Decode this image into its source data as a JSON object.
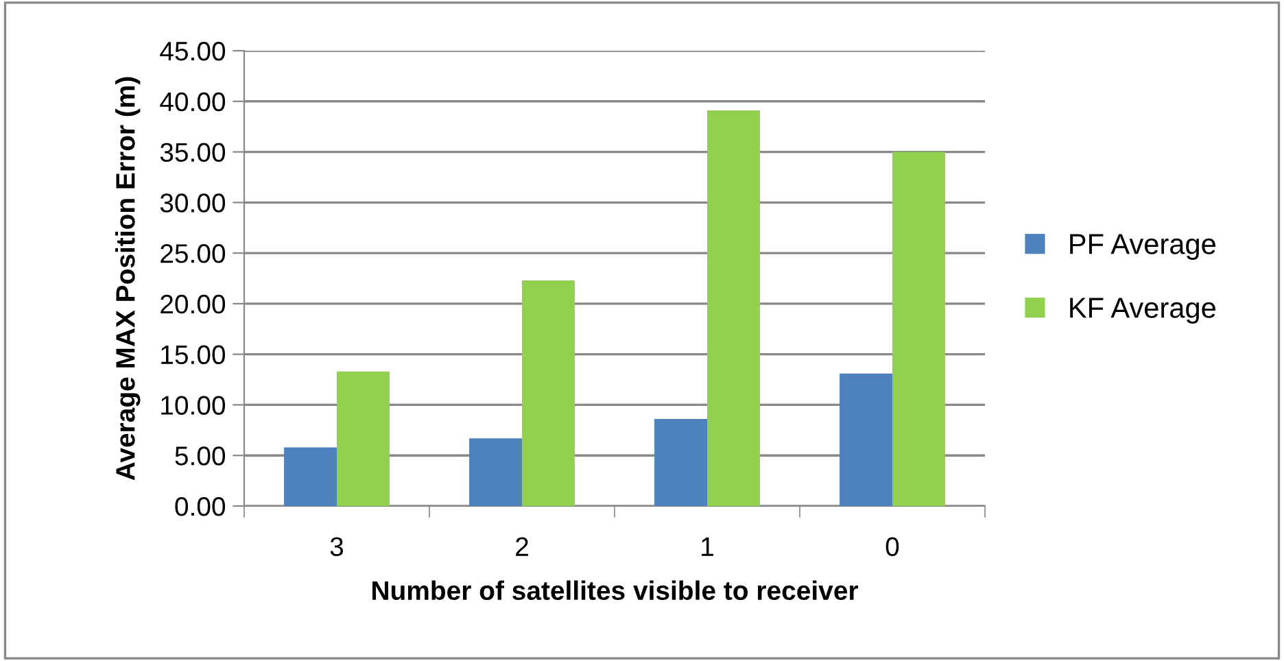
{
  "chart_data": {
    "type": "bar",
    "xlabel": "Number of satellites visible to receiver",
    "ylabel": "Average MAX Position Error (m)",
    "categories": [
      "3",
      "2",
      "1",
      "0"
    ],
    "series": [
      {
        "name": "PF Average",
        "color": "#4f81bd",
        "values": [
          5.8,
          6.7,
          8.6,
          13.1
        ]
      },
      {
        "name": "KF Average",
        "color": "#92d050",
        "values": [
          13.3,
          22.3,
          39.1,
          35.0
        ]
      }
    ],
    "ylim": [
      0,
      45
    ],
    "yticks": [
      {
        "value": 0,
        "label": "0.00"
      },
      {
        "value": 5,
        "label": "5.00"
      },
      {
        "value": 10,
        "label": "10.00"
      },
      {
        "value": 15,
        "label": "15.00"
      },
      {
        "value": 20,
        "label": "20.00"
      },
      {
        "value": 25,
        "label": "25.00"
      },
      {
        "value": 30,
        "label": "30.00"
      },
      {
        "value": 35,
        "label": "35.00"
      },
      {
        "value": 40,
        "label": "40.00"
      },
      {
        "value": 45,
        "label": "45.00"
      }
    ],
    "grid": "y",
    "legend": "right"
  }
}
